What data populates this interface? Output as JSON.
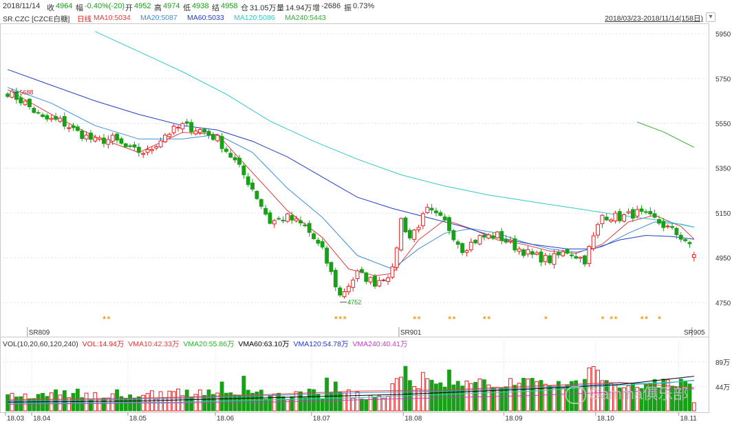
{
  "header": {
    "date": "2018/11/14",
    "close_label": "收",
    "close_value": "4964",
    "change_label": "幅",
    "change_value": "-0.40%(-20)",
    "open_label": "开",
    "open_value": "4952",
    "high_label": "高",
    "high_value": "4974",
    "low_label": "低",
    "low_value": "4938",
    "settle_label": "结",
    "settle_value": "4958",
    "oi_label": "仓",
    "oi_value": "31.05万",
    "volume_label": "量",
    "volume_value": "14.94万",
    "oi_change_label": "增",
    "oi_change_value": "-2686",
    "amplitude_label": "振",
    "amplitude_value": "0.73%"
  },
  "legend": {
    "symbol": "SR.CZC [CZCE白糖]",
    "period": "日线",
    "ma10": "MA10:5034",
    "ma20": "MA20:5087",
    "ma60": "MA60:5033",
    "ma120": "MA120:5086",
    "ma240": "MA240:5443",
    "range": "2018/03/23-2018/11/14(158日)"
  },
  "volume_legend": {
    "title": "VOL(10,20,60,120,240)",
    "vol": "VOL:14.94万",
    "vma10": "VMA10:42.33万",
    "vma20": "VMA20:55.86万",
    "vma60": "VMA60:63.10万",
    "vma120": "VMA120:54.78万",
    "vma240": "VMA240:40.41万"
  },
  "watermark": "Gamma俱乐部",
  "colors": {
    "up": "#e02020",
    "down": "#18a018",
    "ma10": "#e03c3c",
    "ma20": "#3c8cdc",
    "ma60": "#1e3cc8",
    "ma120": "#30c8c8",
    "ma240": "#30b030",
    "vma60": "#000000",
    "vma240": "#c040c0",
    "grid": "#e0e0e0",
    "axis_text": "#333333"
  },
  "chart_data": {
    "type": "candlestick",
    "price_axis": {
      "ticks": [
        5950,
        5750,
        5550,
        5350,
        5150,
        4950,
        4750
      ],
      "labels": [
        "5950",
        "5750",
        "5550",
        "5350",
        "5150",
        "4950",
        "4750"
      ],
      "ylim": [
        4690,
        5990
      ]
    },
    "volume_axis": {
      "ticks": [
        89,
        44
      ],
      "labels": [
        "89万",
        "44万"
      ],
      "ylim": [
        0,
        115
      ]
    },
    "date_ticks": [
      "18.03",
      "18.04",
      "18.05",
      "18.06",
      "18.07",
      "18.08",
      "18.09",
      "18.10",
      "18.11"
    ],
    "date_tick_index": [
      0,
      6,
      28,
      48,
      70,
      91,
      114,
      135,
      154
    ],
    "contract_labels": [
      {
        "label": "SR809",
        "index": 5
      },
      {
        "label": "SR901",
        "index": 90
      },
      {
        "label": "SR905",
        "index": 157
      }
    ],
    "annotations": [
      {
        "text": "5688",
        "index": 1,
        "value": 5688
      },
      {
        "text": "4752",
        "index": 76,
        "value": 4752
      }
    ],
    "marker_index": [
      22,
      23,
      75,
      76,
      77,
      93,
      94,
      101,
      102,
      109,
      110,
      123,
      136,
      138,
      139,
      145,
      146,
      149
    ],
    "anchors": [
      [
        0,
        5690
      ],
      [
        4,
        5640
      ],
      [
        8,
        5570
      ],
      [
        12,
        5560
      ],
      [
        16,
        5510
      ],
      [
        20,
        5470
      ],
      [
        24,
        5480
      ],
      [
        28,
        5430
      ],
      [
        32,
        5420
      ],
      [
        36,
        5500
      ],
      [
        40,
        5540
      ],
      [
        44,
        5520
      ],
      [
        48,
        5480
      ],
      [
        52,
        5380
      ],
      [
        56,
        5260
      ],
      [
        60,
        5110
      ],
      [
        64,
        5130
      ],
      [
        68,
        5090
      ],
      [
        72,
        4980
      ],
      [
        76,
        4780
      ],
      [
        80,
        4880
      ],
      [
        84,
        4840
      ],
      [
        88,
        4890
      ],
      [
        90,
        5120
      ],
      [
        92,
        5040
      ],
      [
        96,
        5160
      ],
      [
        100,
        5110
      ],
      [
        104,
        4990
      ],
      [
        108,
        5040
      ],
      [
        112,
        5050
      ],
      [
        116,
        5000
      ],
      [
        120,
        4960
      ],
      [
        124,
        4940
      ],
      [
        128,
        4980
      ],
      [
        132,
        4940
      ],
      [
        136,
        5140
      ],
      [
        140,
        5130
      ],
      [
        144,
        5150
      ],
      [
        148,
        5120
      ],
      [
        152,
        5070
      ],
      [
        155,
        5030
      ],
      [
        157,
        4964
      ]
    ],
    "ma_series": [
      {
        "key": "ma10",
        "points": [
          [
            0,
            5700
          ],
          [
            10,
            5590
          ],
          [
            20,
            5490
          ],
          [
            30,
            5420
          ],
          [
            40,
            5510
          ],
          [
            48,
            5500
          ],
          [
            56,
            5330
          ],
          [
            64,
            5160
          ],
          [
            72,
            5040
          ],
          [
            78,
            4900
          ],
          [
            84,
            4870
          ],
          [
            88,
            4880
          ],
          [
            94,
            5030
          ],
          [
            100,
            5120
          ],
          [
            106,
            5080
          ],
          [
            112,
            5030
          ],
          [
            118,
            5010
          ],
          [
            124,
            4980
          ],
          [
            130,
            4970
          ],
          [
            136,
            5010
          ],
          [
            142,
            5110
          ],
          [
            148,
            5140
          ],
          [
            154,
            5090
          ],
          [
            157,
            5034
          ]
        ]
      },
      {
        "key": "ma20",
        "points": [
          [
            0,
            5710
          ],
          [
            10,
            5640
          ],
          [
            20,
            5540
          ],
          [
            30,
            5480
          ],
          [
            40,
            5480
          ],
          [
            48,
            5500
          ],
          [
            56,
            5420
          ],
          [
            64,
            5260
          ],
          [
            72,
            5130
          ],
          [
            80,
            4960
          ],
          [
            88,
            4900
          ],
          [
            94,
            4990
          ],
          [
            100,
            5060
          ],
          [
            106,
            5080
          ],
          [
            112,
            5060
          ],
          [
            118,
            5020
          ],
          [
            124,
            4990
          ],
          [
            130,
            4975
          ],
          [
            136,
            5000
          ],
          [
            142,
            5060
          ],
          [
            148,
            5110
          ],
          [
            154,
            5100
          ],
          [
            157,
            5087
          ]
        ]
      },
      {
        "key": "ma60",
        "points": [
          [
            0,
            5790
          ],
          [
            10,
            5720
          ],
          [
            20,
            5650
          ],
          [
            30,
            5590
          ],
          [
            40,
            5540
          ],
          [
            48,
            5520
          ],
          [
            56,
            5470
          ],
          [
            64,
            5400
          ],
          [
            72,
            5310
          ],
          [
            80,
            5220
          ],
          [
            88,
            5170
          ],
          [
            96,
            5130
          ],
          [
            104,
            5090
          ],
          [
            112,
            5040
          ],
          [
            120,
            5010
          ],
          [
            128,
            4990
          ],
          [
            134,
            4990
          ],
          [
            140,
            5030
          ],
          [
            146,
            5050
          ],
          [
            152,
            5045
          ],
          [
            157,
            5033
          ]
        ]
      },
      {
        "key": "ma120",
        "points": [
          [
            20,
            5960
          ],
          [
            30,
            5870
          ],
          [
            40,
            5780
          ],
          [
            50,
            5680
          ],
          [
            60,
            5560
          ],
          [
            70,
            5470
          ],
          [
            80,
            5390
          ],
          [
            90,
            5320
          ],
          [
            100,
            5270
          ],
          [
            110,
            5230
          ],
          [
            120,
            5200
          ],
          [
            130,
            5170
          ],
          [
            140,
            5140
          ],
          [
            150,
            5115
          ],
          [
            157,
            5086
          ]
        ]
      },
      {
        "key": "ma240",
        "points": [
          [
            144,
            5556
          ],
          [
            150,
            5512
          ],
          [
            157,
            5443
          ]
        ]
      }
    ],
    "vma_series": [
      {
        "key": "ma10",
        "points": [
          [
            0,
            20
          ],
          [
            20,
            22
          ],
          [
            40,
            25
          ],
          [
            60,
            30
          ],
          [
            80,
            36
          ],
          [
            100,
            38
          ],
          [
            120,
            45
          ],
          [
            140,
            52
          ],
          [
            150,
            46
          ],
          [
            157,
            42
          ]
        ]
      },
      {
        "key": "ma20",
        "points": [
          [
            0,
            18
          ],
          [
            20,
            20
          ],
          [
            40,
            23
          ],
          [
            60,
            28
          ],
          [
            80,
            33
          ],
          [
            100,
            36
          ],
          [
            120,
            42
          ],
          [
            140,
            50
          ],
          [
            150,
            50
          ],
          [
            157,
            56
          ]
        ]
      },
      {
        "key": "vma60",
        "points": [
          [
            0,
            16
          ],
          [
            30,
            18
          ],
          [
            60,
            24
          ],
          [
            90,
            30
          ],
          [
            120,
            40
          ],
          [
            140,
            48
          ],
          [
            157,
            63
          ]
        ]
      },
      {
        "key": "ma120",
        "points": [
          [
            0,
            14
          ],
          [
            40,
            16
          ],
          [
            80,
            24
          ],
          [
            120,
            36
          ],
          [
            157,
            55
          ]
        ]
      },
      {
        "key": "vma240",
        "points": [
          [
            0,
            12
          ],
          [
            60,
            16
          ],
          [
            120,
            28
          ],
          [
            157,
            40
          ]
        ]
      }
    ]
  }
}
